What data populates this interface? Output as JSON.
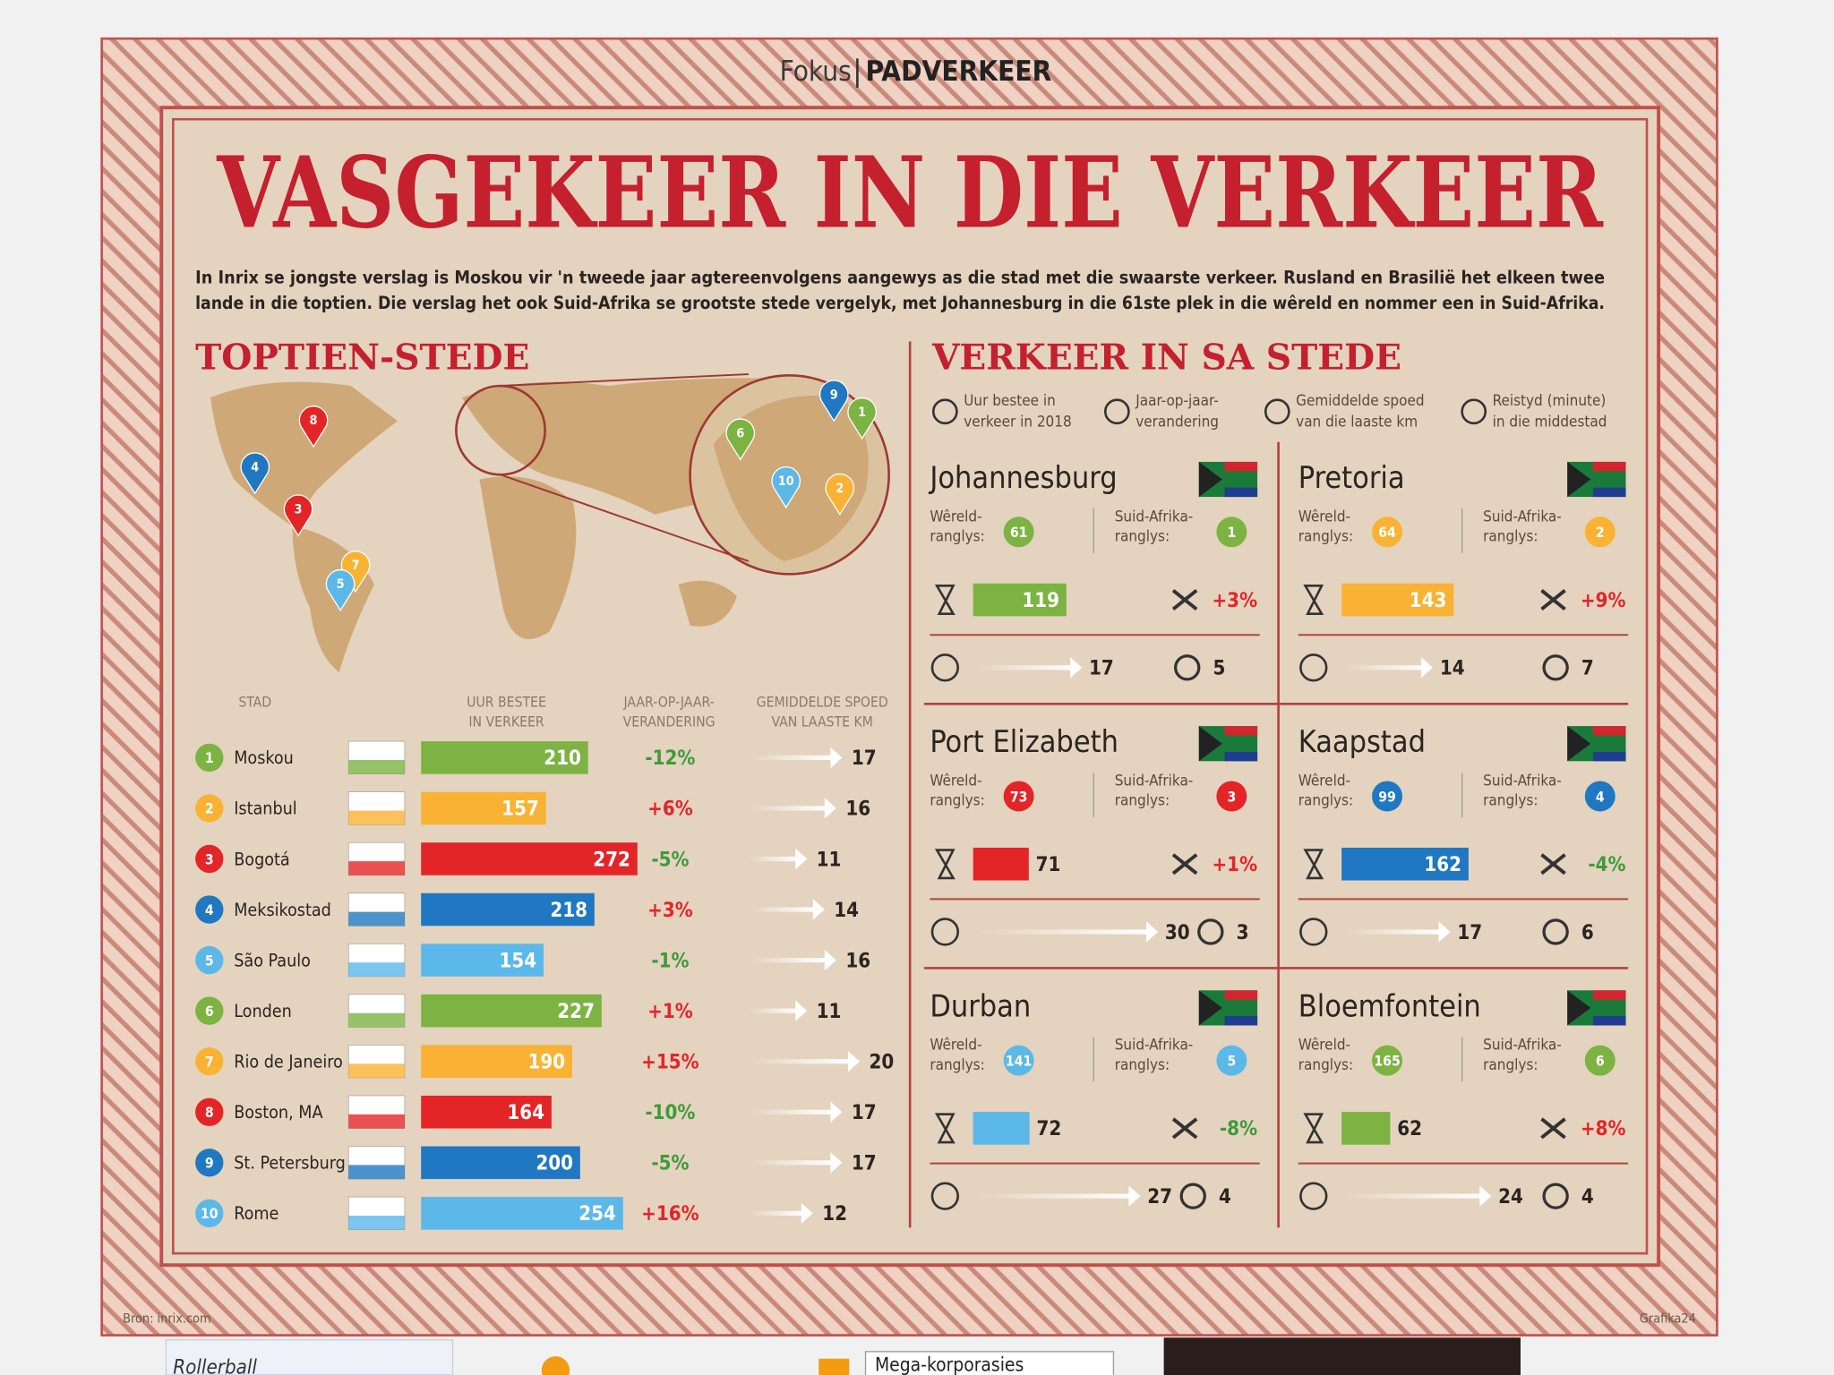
{
  "header": {
    "section": "Fokus",
    "topic": "PADVERKEER"
  },
  "title": "VASGEKEER IN DIE VERKEER",
  "intro": [
    "In Inrix se jongste verslag is Moskou vir 'n tweede jaar agtereenvolgens aangewys as die stad met die swaarste verkeer. Rusland en Brasilië het elkeen twee",
    "lande in die toptien. Die verslag het ook Suid-Afrika se grootste stede vergelyk, met Johannesburg in die 61ste plek in die wêreld en nommer een in Suid-Afrika."
  ],
  "top10": {
    "heading": "TOPTIEN-STEDE",
    "columns": [
      [
        "STAD"
      ],
      [
        "UUR BESTEE",
        "IN VERKEER"
      ],
      [
        "JAAR-OP-JAAR-",
        "VERANDERING"
      ],
      [
        "GEMIDDELDE SPOED",
        "VAN LAASTE KM"
      ]
    ],
    "rows": [
      {
        "rank": 1,
        "city": "Moskou",
        "hours": 210,
        "change": "-12%",
        "speed": 17,
        "color": "#7cb342"
      },
      {
        "rank": 2,
        "city": "Istanbul",
        "hours": 157,
        "change": "+6%",
        "speed": 16,
        "color": "#f9b233"
      },
      {
        "rank": 3,
        "city": "Bogotá",
        "hours": 272,
        "change": "-5%",
        "speed": 11,
        "color": "#e42528"
      },
      {
        "rank": 4,
        "city": "Meksikostad",
        "hours": 218,
        "change": "+3%",
        "speed": 14,
        "color": "#1f78c1"
      },
      {
        "rank": 5,
        "city": "São Paulo",
        "hours": 154,
        "change": "-1%",
        "speed": 16,
        "color": "#5bb8e8"
      },
      {
        "rank": 6,
        "city": "Londen",
        "hours": 227,
        "change": "+1%",
        "speed": 11,
        "color": "#7cb342"
      },
      {
        "rank": 7,
        "city": "Rio de Janeiro",
        "hours": 190,
        "change": "+15%",
        "speed": 20,
        "color": "#f9b233"
      },
      {
        "rank": 8,
        "city": "Boston, MA",
        "hours": 164,
        "change": "-10%",
        "speed": 17,
        "color": "#e42528"
      },
      {
        "rank": 9,
        "city": "St. Petersburg",
        "hours": 200,
        "change": "-5%",
        "speed": 17,
        "color": "#1f78c1"
      },
      {
        "rank": 10,
        "city": "Rome",
        "hours": 254,
        "change": "+16%",
        "speed": 12,
        "color": "#5bb8e8"
      }
    ]
  },
  "map": {
    "pins": [
      8,
      4,
      3,
      7,
      5,
      6,
      9,
      1,
      10,
      2
    ]
  },
  "sa": {
    "heading": "VERKEER IN SA STEDE",
    "legend": [
      [
        "Uur bestee in",
        "verkeer in 2018"
      ],
      [
        "Jaar-op-jaar-",
        "verandering"
      ],
      [
        "Gemiddelde spoed",
        "van die laaste km"
      ],
      [
        "Reistyd (minute)",
        "in die middestad"
      ]
    ],
    "world_label": [
      "Wêreld-",
      "ranglys:"
    ],
    "sa_label": [
      "Suid-Afrika-",
      "ranglys:"
    ],
    "cities": [
      {
        "city": "Johannesburg",
        "world": 61,
        "sa": 1,
        "hours": 119,
        "change": "+3%",
        "speed": 17,
        "time": 5,
        "color": "#7cb342"
      },
      {
        "city": "Pretoria",
        "world": 64,
        "sa": 2,
        "hours": 143,
        "change": "+9%",
        "speed": 14,
        "time": 7,
        "color": "#f9b233"
      },
      {
        "city": "Port Elizabeth",
        "world": 73,
        "sa": 3,
        "hours": 71,
        "change": "+1%",
        "speed": 30,
        "time": 3,
        "color": "#e42528"
      },
      {
        "city": "Kaapstad",
        "world": 99,
        "sa": 4,
        "hours": 162,
        "change": "-4%",
        "speed": 17,
        "time": 6,
        "color": "#1f78c1"
      },
      {
        "city": "Durban",
        "world": 141,
        "sa": 5,
        "hours": 72,
        "change": "-8%",
        "speed": 27,
        "time": 4,
        "color": "#5bb8e8"
      },
      {
        "city": "Bloemfontein",
        "world": 165,
        "sa": 6,
        "hours": 62,
        "change": "+8%",
        "speed": 24,
        "time": 4,
        "color": "#7cb342"
      }
    ]
  },
  "footer": {
    "source": "Bron: inrix.com",
    "credit": "Grafika24"
  },
  "below": {
    "left": "Rollerball",
    "middle": "Mega-korporasies"
  }
}
